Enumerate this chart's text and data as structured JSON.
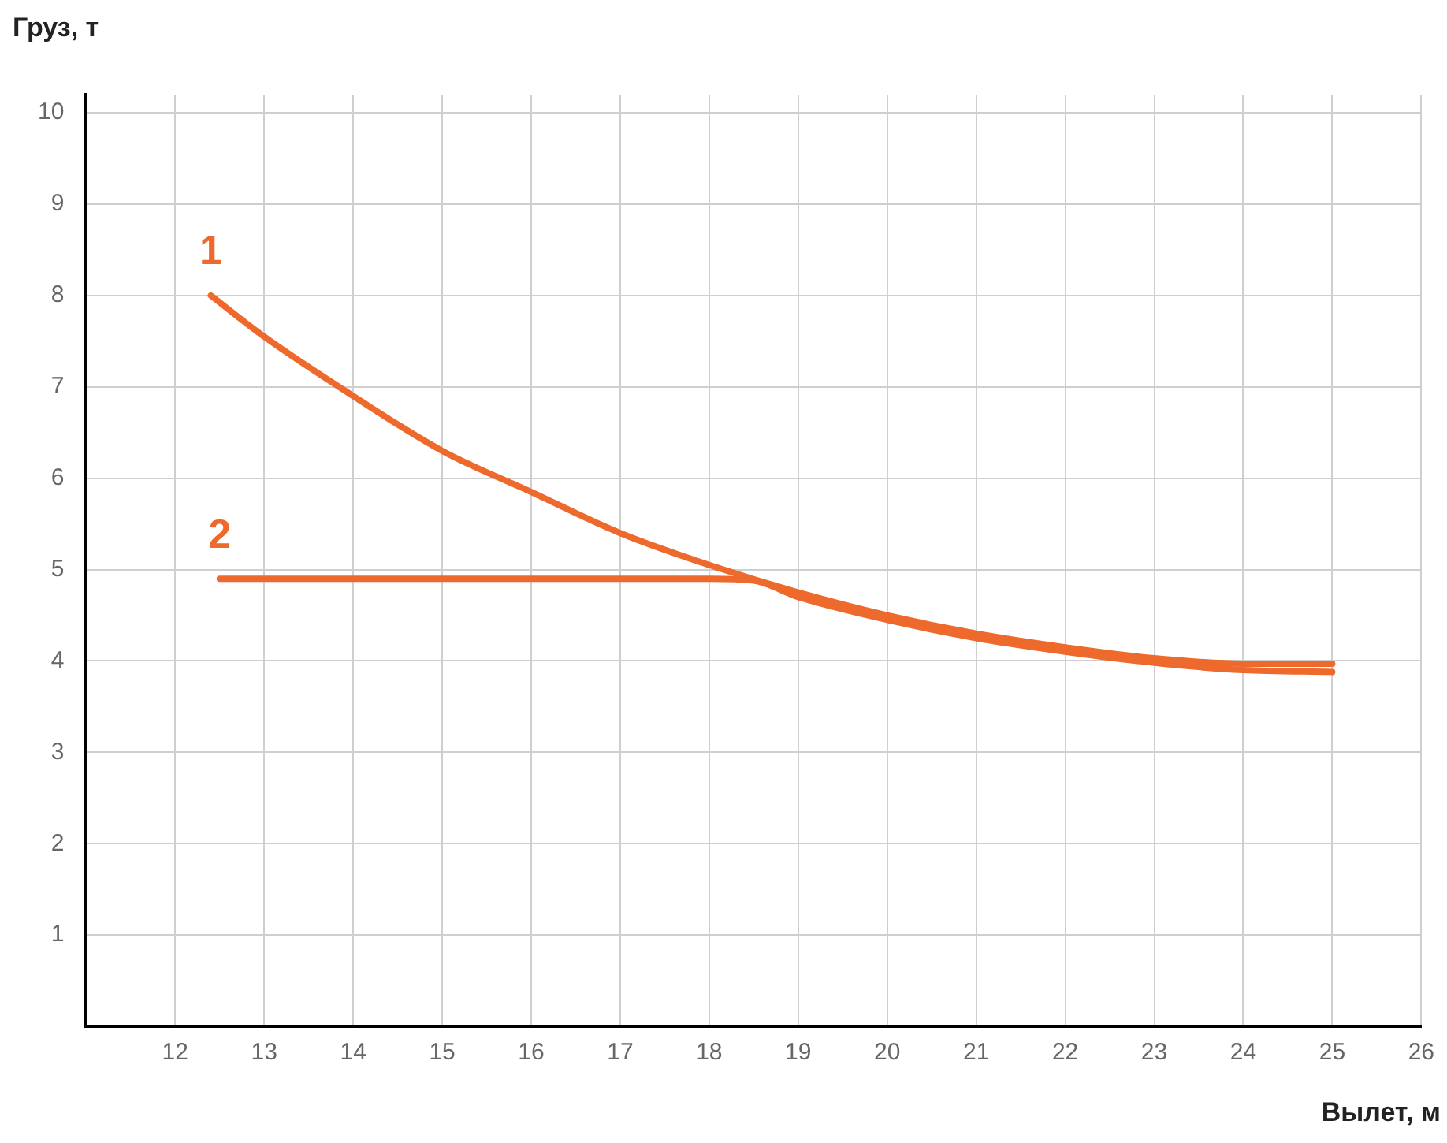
{
  "chart_data": {
    "type": "line",
    "xlabel": "Вылет, м",
    "ylabel": "Груз, т",
    "xlim": [
      11,
      26
    ],
    "xticks": [
      12,
      13,
      14,
      15,
      16,
      17,
      18,
      19,
      20,
      21,
      22,
      23,
      24,
      25,
      26
    ],
    "ylim": [
      0,
      10.2
    ],
    "yticks": [
      1,
      2,
      3,
      4,
      5,
      6,
      7,
      8,
      9,
      10
    ],
    "grid": true,
    "legend": false,
    "marker": "none",
    "line_style": "solid",
    "series": [
      {
        "name": "1",
        "color": "#ee6a2c",
        "x": [
          12.4,
          13,
          14,
          15,
          16,
          17,
          18,
          19,
          20,
          21,
          22,
          23,
          24,
          25
        ],
        "values": [
          8.0,
          7.55,
          6.9,
          6.3,
          5.85,
          5.4,
          5.05,
          4.75,
          4.5,
          4.3,
          4.15,
          4.03,
          3.97,
          3.97
        ]
      },
      {
        "name": "2",
        "color": "#ee6a2c",
        "x": [
          12.5,
          18,
          18.5,
          19,
          20,
          21,
          22,
          23,
          24,
          25
        ],
        "values": [
          4.9,
          4.9,
          4.88,
          4.7,
          4.45,
          4.25,
          4.1,
          3.98,
          3.9,
          3.88
        ]
      }
    ]
  }
}
